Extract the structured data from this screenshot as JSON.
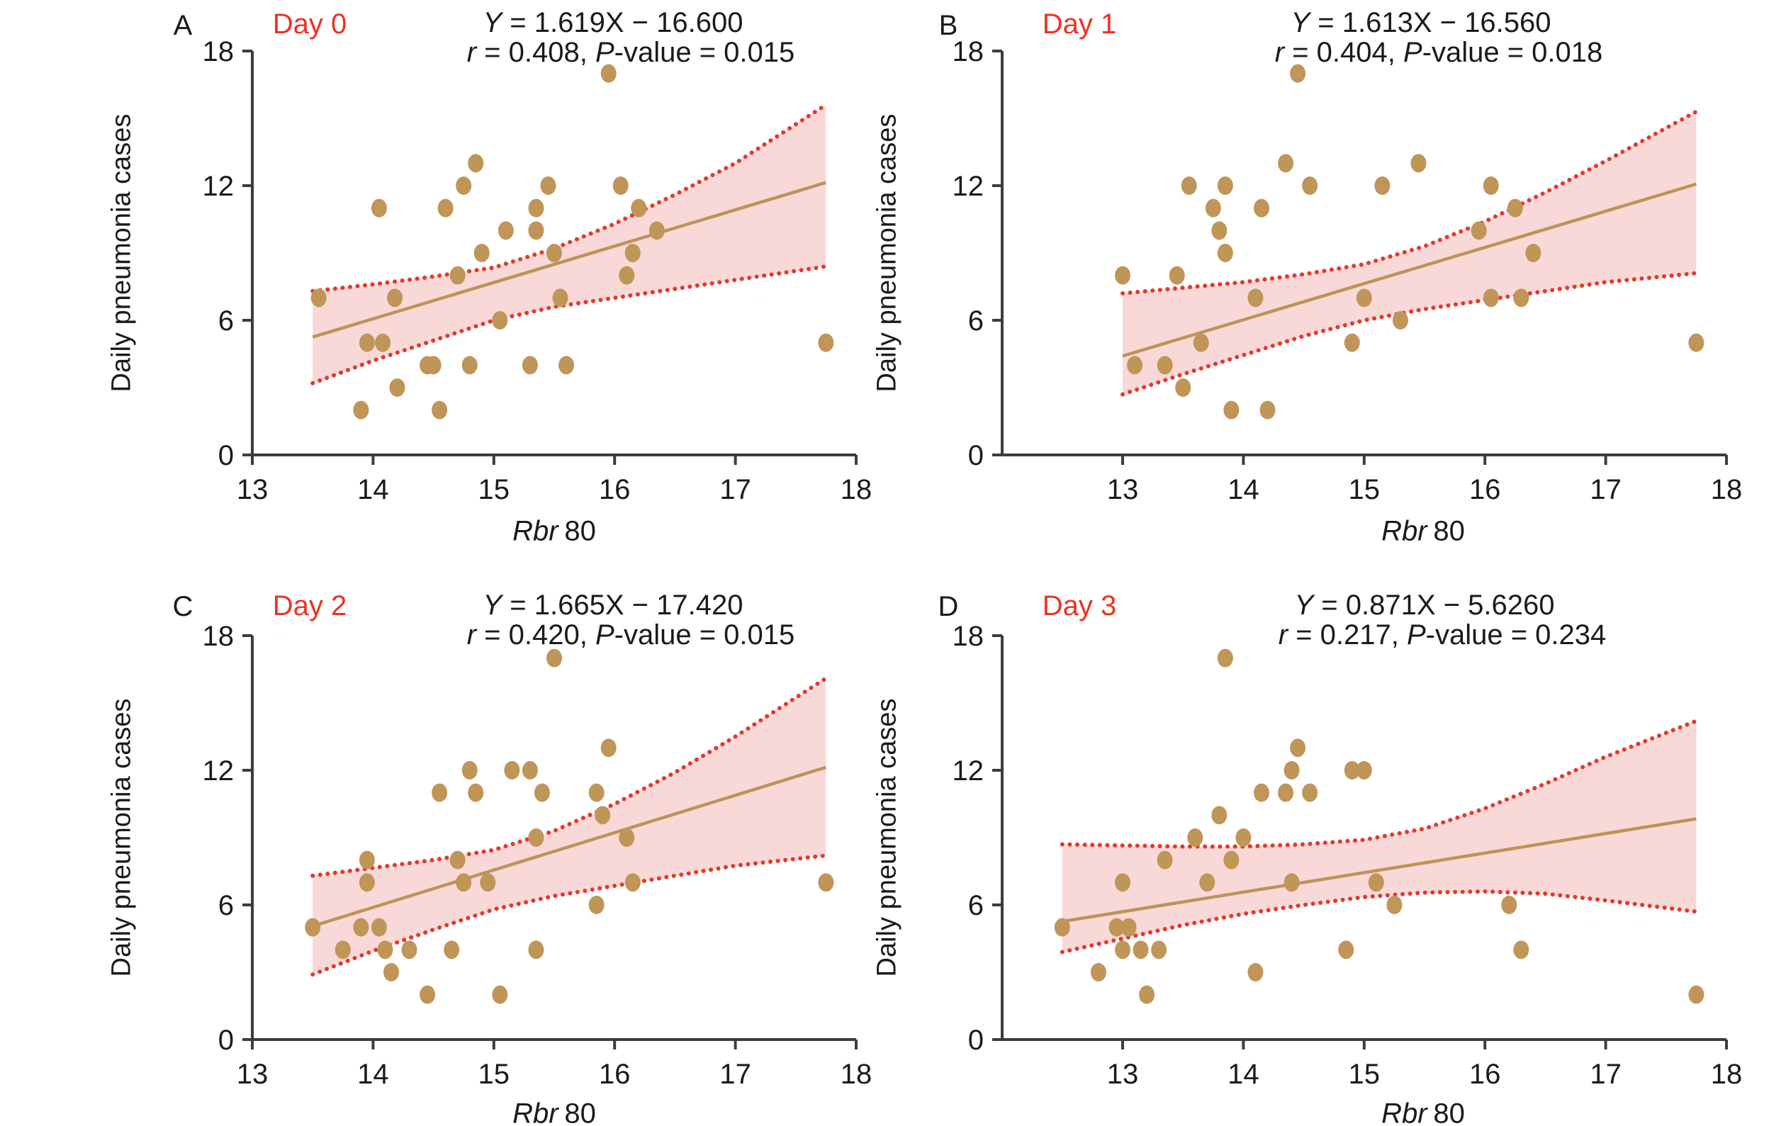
{
  "figure": {
    "ylabel": "Daily pneumonia cases",
    "xlabel_italic": "Rbr",
    "xlabel_rest": "80",
    "colors": {
      "accent_red": "#EA3323",
      "dot_tan": "#C09558",
      "regression_tan": "#BE9359",
      "band_pink": "#F9D9D8",
      "ci_dotted_red": "#E6382B",
      "text": "#1A1A1A",
      "axis": "#3C3C3C"
    }
  },
  "chart_data": [
    {
      "type": "scatter",
      "panel": "A",
      "day_label": "Day 0",
      "equation": "Y = 1.619X − 16.600",
      "stats": "r = 0.408, P-value = 0.015",
      "xlabel": "Rbr 80",
      "ylabel": "Daily pneumonia cases",
      "xlim": [
        13,
        18
      ],
      "ylim": [
        0,
        18
      ],
      "xticks": [
        13,
        14,
        15,
        16,
        17,
        18
      ],
      "yticks": [
        0,
        6,
        12,
        18
      ],
      "regression": {
        "slope": 1.619,
        "intercept": -16.6,
        "x_start": 13.5,
        "x_end": 17.75
      },
      "band": {
        "x": [
          13.5,
          14.0,
          14.5,
          15.0,
          15.5,
          16.0,
          16.5,
          17.0,
          17.75
        ],
        "upper": [
          7.3,
          7.6,
          7.95,
          8.35,
          9.2,
          10.3,
          11.6,
          13.0,
          15.6
        ],
        "lower": [
          3.2,
          4.2,
          5.1,
          6.0,
          6.6,
          7.0,
          7.4,
          7.8,
          8.4
        ]
      },
      "points": [
        [
          13.55,
          7
        ],
        [
          13.9,
          2
        ],
        [
          13.95,
          5
        ],
        [
          14.08,
          5
        ],
        [
          14.05,
          11
        ],
        [
          14.18,
          7
        ],
        [
          14.2,
          3
        ],
        [
          14.45,
          4
        ],
        [
          14.5,
          4
        ],
        [
          14.8,
          4
        ],
        [
          14.55,
          2
        ],
        [
          14.6,
          11
        ],
        [
          14.7,
          8
        ],
        [
          14.75,
          12
        ],
        [
          14.85,
          13
        ],
        [
          14.9,
          9
        ],
        [
          15.05,
          6
        ],
        [
          15.1,
          10
        ],
        [
          15.35,
          10
        ],
        [
          15.3,
          4
        ],
        [
          15.35,
          11
        ],
        [
          15.45,
          12
        ],
        [
          15.5,
          9
        ],
        [
          15.55,
          7
        ],
        [
          15.6,
          4
        ],
        [
          15.95,
          17
        ],
        [
          16.05,
          12
        ],
        [
          16.2,
          11
        ],
        [
          16.35,
          10
        ],
        [
          16.15,
          9
        ],
        [
          16.1,
          8
        ],
        [
          17.75,
          5
        ]
      ]
    },
    {
      "type": "scatter",
      "panel": "B",
      "day_label": "Day 1",
      "equation": "Y = 1.613X − 16.560",
      "stats": "r = 0.404, P-value = 0.018",
      "xlabel": "Rbr 80",
      "ylabel": "Daily pneumonia cases",
      "xlim": [
        12,
        18
      ],
      "ylim": [
        0,
        18
      ],
      "xticks": [
        13,
        14,
        15,
        16,
        17,
        18
      ],
      "yticks": [
        0,
        6,
        12,
        18
      ],
      "regression": {
        "slope": 1.613,
        "intercept": -16.56,
        "x_start": 13.0,
        "x_end": 17.75
      },
      "band": {
        "x": [
          13.0,
          13.5,
          14.0,
          14.5,
          15.0,
          15.5,
          16.0,
          16.5,
          17.0,
          17.75
        ],
        "upper": [
          7.2,
          7.45,
          7.7,
          8.05,
          8.5,
          9.3,
          10.4,
          11.7,
          13.1,
          15.3
        ],
        "lower": [
          2.7,
          3.6,
          4.45,
          5.3,
          6.0,
          6.5,
          6.9,
          7.3,
          7.7,
          8.1
        ]
      },
      "points": [
        [
          13.0,
          8
        ],
        [
          13.45,
          8
        ],
        [
          13.1,
          4
        ],
        [
          13.35,
          4
        ],
        [
          13.5,
          3
        ],
        [
          13.65,
          5
        ],
        [
          13.9,
          2
        ],
        [
          14.2,
          2
        ],
        [
          13.55,
          12
        ],
        [
          13.75,
          11
        ],
        [
          13.8,
          10
        ],
        [
          13.85,
          12
        ],
        [
          13.85,
          9
        ],
        [
          14.15,
          11
        ],
        [
          14.35,
          13
        ],
        [
          14.45,
          17
        ],
        [
          14.55,
          12
        ],
        [
          14.1,
          7
        ],
        [
          14.9,
          5
        ],
        [
          15.0,
          7
        ],
        [
          15.15,
          12
        ],
        [
          15.3,
          6
        ],
        [
          15.45,
          13
        ],
        [
          15.95,
          10
        ],
        [
          16.05,
          12
        ],
        [
          16.25,
          11
        ],
        [
          16.05,
          7
        ],
        [
          16.3,
          7
        ],
        [
          16.4,
          9
        ],
        [
          17.75,
          5
        ]
      ]
    },
    {
      "type": "scatter",
      "panel": "C",
      "day_label": "Day 2",
      "equation": "Y = 1.665X − 17.420",
      "stats": "r = 0.420, P-value = 0.015",
      "xlabel": "Rbr 80",
      "ylabel": "Daily pneumonia cases",
      "xlim": [
        13,
        18
      ],
      "ylim": [
        0,
        18
      ],
      "xticks": [
        13,
        14,
        15,
        16,
        17,
        18
      ],
      "yticks": [
        0,
        6,
        12,
        18
      ],
      "regression": {
        "slope": 1.665,
        "intercept": -17.42,
        "x_start": 13.5,
        "x_end": 17.75
      },
      "band": {
        "x": [
          13.5,
          14.0,
          14.5,
          15.0,
          15.5,
          16.0,
          16.5,
          17.0,
          17.75
        ],
        "upper": [
          7.3,
          7.65,
          8.0,
          8.45,
          9.3,
          10.5,
          11.9,
          13.5,
          16.1
        ],
        "lower": [
          2.9,
          3.95,
          4.9,
          5.8,
          6.4,
          6.85,
          7.3,
          7.75,
          8.2
        ]
      },
      "points": [
        [
          13.5,
          5
        ],
        [
          13.75,
          4
        ],
        [
          13.9,
          5
        ],
        [
          14.05,
          5
        ],
        [
          13.95,
          8
        ],
        [
          13.95,
          7
        ],
        [
          14.1,
          4
        ],
        [
          14.3,
          4
        ],
        [
          14.15,
          3
        ],
        [
          14.45,
          2
        ],
        [
          14.55,
          11
        ],
        [
          14.65,
          4
        ],
        [
          14.7,
          8
        ],
        [
          14.75,
          7
        ],
        [
          14.8,
          12
        ],
        [
          14.85,
          11
        ],
        [
          14.95,
          7
        ],
        [
          15.05,
          2
        ],
        [
          15.15,
          12
        ],
        [
          15.3,
          12
        ],
        [
          15.35,
          9
        ],
        [
          15.35,
          4
        ],
        [
          15.4,
          11
        ],
        [
          15.5,
          17
        ],
        [
          15.85,
          11
        ],
        [
          15.85,
          6
        ],
        [
          15.9,
          10
        ],
        [
          15.95,
          13
        ],
        [
          16.1,
          9
        ],
        [
          16.15,
          7
        ],
        [
          17.75,
          7
        ]
      ]
    },
    {
      "type": "scatter",
      "panel": "D",
      "day_label": "Day 3",
      "equation": "Y = 0.871X − 5.6260",
      "stats": "r = 0.217, P-value = 0.234",
      "xlabel": "Rbr 80",
      "ylabel": "Daily pneumonia cases",
      "xlim": [
        12,
        18
      ],
      "ylim": [
        0,
        18
      ],
      "xticks": [
        13,
        14,
        15,
        16,
        17,
        18
      ],
      "yticks": [
        0,
        6,
        12,
        18
      ],
      "regression": {
        "slope": 0.871,
        "intercept": -5.626,
        "x_start": 12.5,
        "x_end": 17.75
      },
      "band": {
        "x": [
          12.5,
          13.0,
          13.5,
          14.0,
          14.5,
          15.0,
          15.5,
          16.0,
          16.5,
          17.0,
          17.75
        ],
        "upper": [
          8.7,
          8.65,
          8.6,
          8.6,
          8.7,
          8.9,
          9.4,
          10.3,
          11.4,
          12.6,
          14.2
        ],
        "lower": [
          3.9,
          4.5,
          5.1,
          5.6,
          6.0,
          6.35,
          6.55,
          6.6,
          6.5,
          6.2,
          5.7
        ]
      },
      "points": [
        [
          12.5,
          5
        ],
        [
          12.8,
          3
        ],
        [
          12.95,
          5
        ],
        [
          13.05,
          5
        ],
        [
          13.0,
          4
        ],
        [
          13.15,
          4
        ],
        [
          13.3,
          4
        ],
        [
          13.2,
          2
        ],
        [
          13.0,
          7
        ],
        [
          13.35,
          8
        ],
        [
          13.6,
          9
        ],
        [
          13.7,
          7
        ],
        [
          13.8,
          10
        ],
        [
          13.85,
          17
        ],
        [
          13.9,
          8
        ],
        [
          14.0,
          9
        ],
        [
          14.15,
          11
        ],
        [
          14.35,
          11
        ],
        [
          14.55,
          11
        ],
        [
          14.4,
          12
        ],
        [
          14.45,
          13
        ],
        [
          14.4,
          7
        ],
        [
          14.9,
          12
        ],
        [
          15.0,
          12
        ],
        [
          15.1,
          7
        ],
        [
          15.25,
          6
        ],
        [
          14.85,
          4
        ],
        [
          14.1,
          3
        ],
        [
          16.2,
          6
        ],
        [
          16.3,
          4
        ],
        [
          17.75,
          2
        ]
      ]
    }
  ]
}
